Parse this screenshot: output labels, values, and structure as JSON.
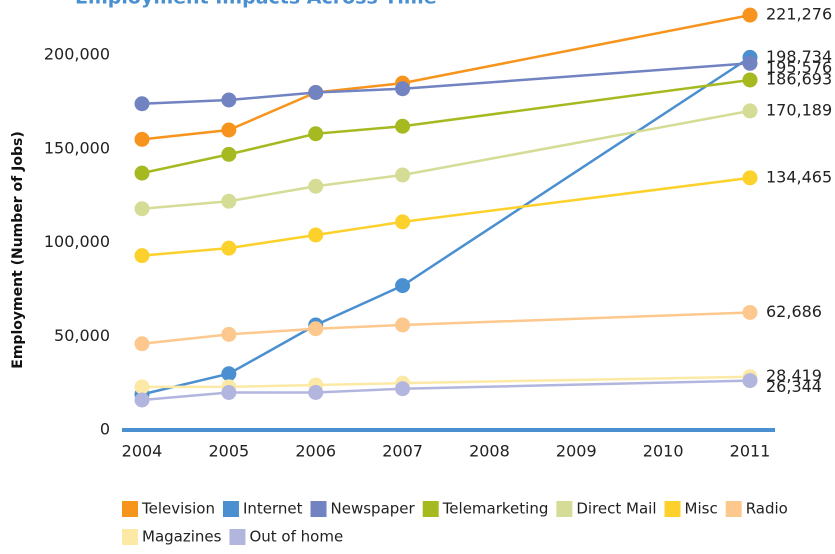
{
  "chart_data": {
    "type": "line",
    "title": "Employment Impacts Across Time",
    "y_label": "Employment (Number of Jobs)",
    "x": [
      2004,
      2005,
      2006,
      2007,
      2011
    ],
    "xlim": [
      2004,
      2011
    ],
    "xticks": [
      2004,
      2005,
      2006,
      2007,
      2008,
      2009,
      2010,
      2011
    ],
    "ylim": [
      0,
      200000
    ],
    "yticks": [
      0,
      {
        "value": 50000,
        "label": "50,000"
      },
      {
        "value": 100000,
        "label": "100,000"
      },
      {
        "value": 150000,
        "label": "150,000"
      },
      {
        "value": 200000,
        "label": "200,000"
      }
    ],
    "grid": false,
    "series": [
      {
        "name": "Television",
        "color": "#f7941d",
        "values": [
          155000,
          160000,
          180000,
          185000,
          221276
        ],
        "value_labels": [
          null,
          null,
          null,
          null,
          "221,276"
        ]
      },
      {
        "name": "Internet",
        "color": "#4a8fd0",
        "values": [
          19000,
          30000,
          56000,
          77000,
          198734
        ],
        "value_labels": [
          null,
          null,
          null,
          null,
          "198,734"
        ]
      },
      {
        "name": "Newspaper",
        "color": "#7283c1",
        "values": [
          174000,
          176000,
          180000,
          182000,
          195576
        ],
        "value_labels": [
          null,
          null,
          null,
          null,
          "195,576"
        ]
      },
      {
        "name": "Telemarketing",
        "color": "#a6b921",
        "values": [
          137000,
          147000,
          158000,
          162000,
          186693
        ],
        "value_labels": [
          null,
          null,
          null,
          null,
          "186,693"
        ]
      },
      {
        "name": "Direct Mail",
        "color": "#d4dc96",
        "values": [
          118000,
          122000,
          130000,
          136000,
          170189
        ],
        "value_labels": [
          null,
          null,
          null,
          null,
          "170,189"
        ]
      },
      {
        "name": "Misc",
        "color": "#fdd12b",
        "values": [
          93000,
          97000,
          104000,
          111000,
          134465
        ],
        "value_labels": [
          null,
          null,
          null,
          null,
          "134,465"
        ]
      },
      {
        "name": "Radio",
        "color": "#fcc88e",
        "values": [
          46000,
          51000,
          54000,
          56000,
          62686
        ],
        "value_labels": [
          null,
          null,
          null,
          null,
          "62,686"
        ]
      },
      {
        "name": "Magazines",
        "color": "#fde9a6",
        "values": [
          23000,
          23000,
          24000,
          25000,
          28419
        ],
        "value_labels": [
          null,
          null,
          null,
          null,
          "28,419"
        ]
      },
      {
        "name": "Out of home",
        "color": "#b2b6de",
        "values": [
          16000,
          20000,
          20000,
          22000,
          26344
        ],
        "value_labels": [
          null,
          null,
          null,
          null,
          "26,344"
        ]
      }
    ]
  }
}
